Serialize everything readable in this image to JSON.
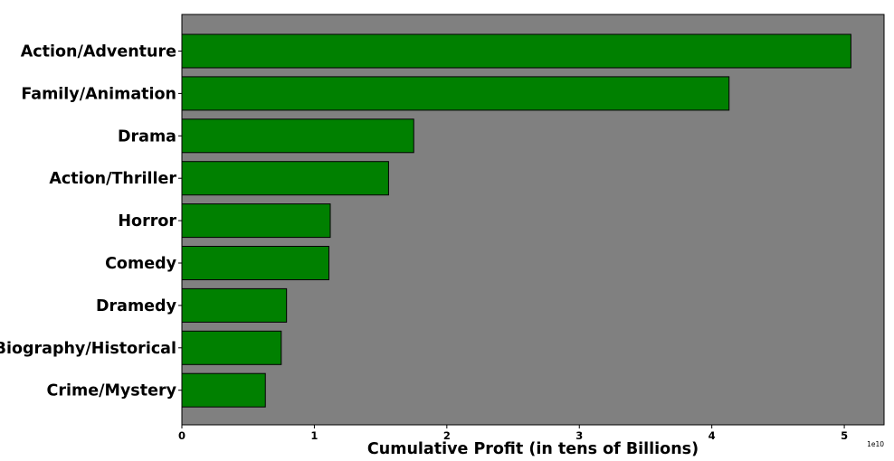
{
  "chart_data": {
    "type": "bar",
    "orientation": "horizontal",
    "categories": [
      "Action/Adventure",
      "Family/Animation",
      "Drama",
      "Action/Thriller",
      "Horror",
      "Comedy",
      "Dramedy",
      "Biography/Historical",
      "Crime/Mystery"
    ],
    "values": [
      50500000000,
      41300000000,
      17500000000,
      15600000000,
      11200000000,
      11100000000,
      7900000000,
      7500000000,
      6300000000
    ],
    "title": "",
    "xlabel": "Cumulative Profit (in tens of Billions)",
    "ylabel": "",
    "xlim": [
      0,
      53000000000
    ],
    "x_ticks": [
      0,
      10000000000,
      20000000000,
      30000000000,
      40000000000,
      50000000000
    ],
    "x_tick_labels": [
      "0",
      "1",
      "2",
      "3",
      "4",
      "5"
    ],
    "x_offset_label": "1e10",
    "grid": false,
    "legend": "none",
    "colors": {
      "bar_fill": "#008000",
      "bar_edge": "#000000",
      "plot_background": "#808080",
      "figure_background": "#ffffff"
    }
  }
}
